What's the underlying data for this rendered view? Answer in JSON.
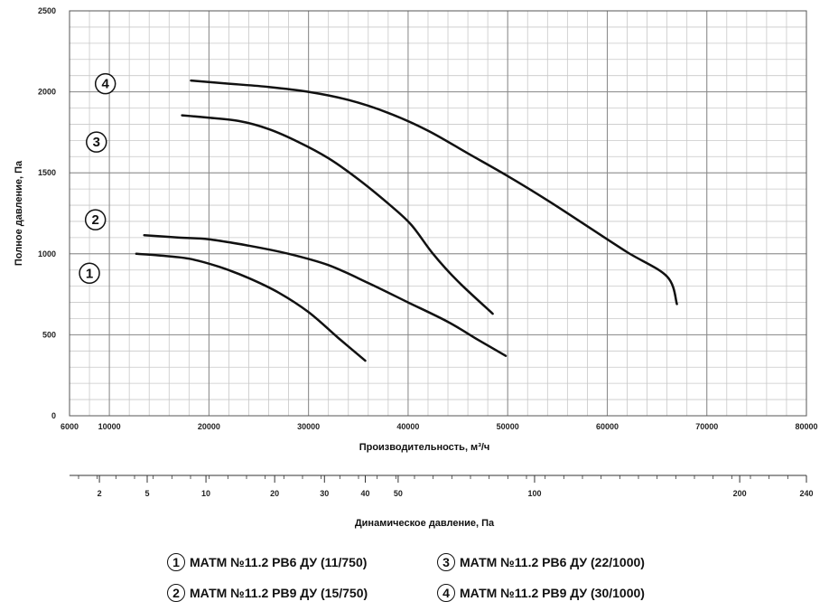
{
  "chart_data": {
    "type": "line",
    "xlabel": "Производительность, м³/ч",
    "ylabel": "Полное давление, Па",
    "x2label": "Динамическое давление, Па",
    "xlim": [
      6000,
      80000
    ],
    "ylim": [
      0,
      2500
    ],
    "x_ticks": [
      "6000",
      "10000",
      "20000",
      "30000",
      "40000",
      "50000",
      "60000",
      "70000",
      "80000"
    ],
    "x_tick_values": [
      6000,
      10000,
      20000,
      30000,
      40000,
      50000,
      60000,
      70000,
      80000
    ],
    "y_ticks": [
      "0",
      "500",
      "1000",
      "1500",
      "2000",
      "2500"
    ],
    "y_tick_values": [
      0,
      500,
      1000,
      1500,
      2000,
      2500
    ],
    "x2_ticks": [
      "2",
      "5",
      "10",
      "20",
      "30",
      "40",
      "50",
      "100",
      "200",
      "240"
    ],
    "x2_tick_flow": [
      9000,
      13800,
      19700,
      26600,
      31600,
      35700,
      39000,
      52700,
      73300,
      80000
    ],
    "grid": true,
    "series": [
      {
        "id": "1",
        "name": "МАТМ №11.2 РВ6 ДУ (11/750)",
        "x": [
          12700,
          15000,
          18000,
          21000,
          24000,
          27000,
          30000,
          33000,
          35700
        ],
        "y": [
          1000,
          990,
          970,
          920,
          850,
          760,
          640,
          480,
          340
        ]
      },
      {
        "id": "2",
        "name": "МАТМ №11.2 РВ9 ДУ (15/750)",
        "x": [
          13500,
          17000,
          20000,
          24000,
          28000,
          32000,
          36000,
          40000,
          44000,
          47000,
          49800
        ],
        "y": [
          1115,
          1100,
          1090,
          1050,
          1000,
          930,
          820,
          700,
          580,
          470,
          370
        ]
      },
      {
        "id": "3",
        "name": "МАТМ №11.2 РВ6 ДУ (22/1000)",
        "x": [
          17300,
          20000,
          23000,
          26000,
          29000,
          32000,
          35000,
          38000,
          40300,
          42500,
          45000,
          48500
        ],
        "y": [
          1855,
          1840,
          1820,
          1770,
          1690,
          1590,
          1460,
          1310,
          1180,
          1000,
          830,
          630
        ]
      },
      {
        "id": "4",
        "name": "МАТМ №11.2 РВ9 ДУ (30/1000)",
        "x": [
          18200,
          22000,
          26000,
          30000,
          34000,
          38000,
          42000,
          46000,
          50000,
          54000,
          58000,
          62000,
          66000,
          67000
        ],
        "y": [
          2070,
          2050,
          2030,
          2000,
          1950,
          1870,
          1760,
          1620,
          1480,
          1330,
          1170,
          1010,
          860,
          690
        ]
      }
    ],
    "curve_labels": [
      {
        "text": "1",
        "x": 8000,
        "y": 880
      },
      {
        "text": "2",
        "x": 8600,
        "y": 1210
      },
      {
        "text": "3",
        "x": 8700,
        "y": 1690
      },
      {
        "text": "4",
        "x": 9600,
        "y": 2050
      }
    ]
  },
  "legend": {
    "items": [
      {
        "num": "1",
        "label": "МАТМ №11.2 РВ6 ДУ (11/750)"
      },
      {
        "num": "2",
        "label": "МАТМ №11.2 РВ9 ДУ (15/750)"
      },
      {
        "num": "3",
        "label": "МАТМ №11.2 РВ6 ДУ (22/1000)"
      },
      {
        "num": "4",
        "label": "МАТМ №11.2 РВ9 ДУ (30/1000)"
      }
    ]
  }
}
